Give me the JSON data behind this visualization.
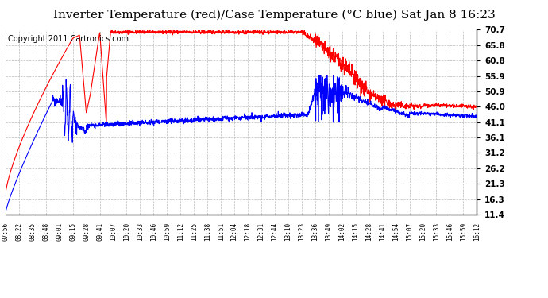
{
  "title": "Inverter Temperature (red)/Case Temperature (°C blue) Sat Jan 8 16:23",
  "copyright": "Copyright 2011 Cartronics.com",
  "background_color": "#ffffff",
  "plot_bg_color": "#ffffff",
  "grid_color": "#bbbbbb",
  "y_ticks": [
    11.4,
    16.3,
    21.3,
    26.2,
    31.2,
    36.1,
    41.1,
    46.0,
    50.9,
    55.9,
    60.8,
    65.8,
    70.7
  ],
  "ylim": [
    11.4,
    70.7
  ],
  "x_labels": [
    "07:56",
    "08:22",
    "08:35",
    "08:48",
    "09:01",
    "09:15",
    "09:28",
    "09:41",
    "10:07",
    "10:20",
    "10:33",
    "10:46",
    "10:59",
    "11:12",
    "11:25",
    "11:38",
    "11:51",
    "12:04",
    "12:18",
    "12:31",
    "12:44",
    "13:10",
    "13:23",
    "13:36",
    "13:49",
    "14:02",
    "14:15",
    "14:28",
    "14:41",
    "14:54",
    "15:07",
    "15:20",
    "15:33",
    "15:46",
    "15:59",
    "16:12"
  ],
  "title_fontsize": 11,
  "copyright_fontsize": 7
}
